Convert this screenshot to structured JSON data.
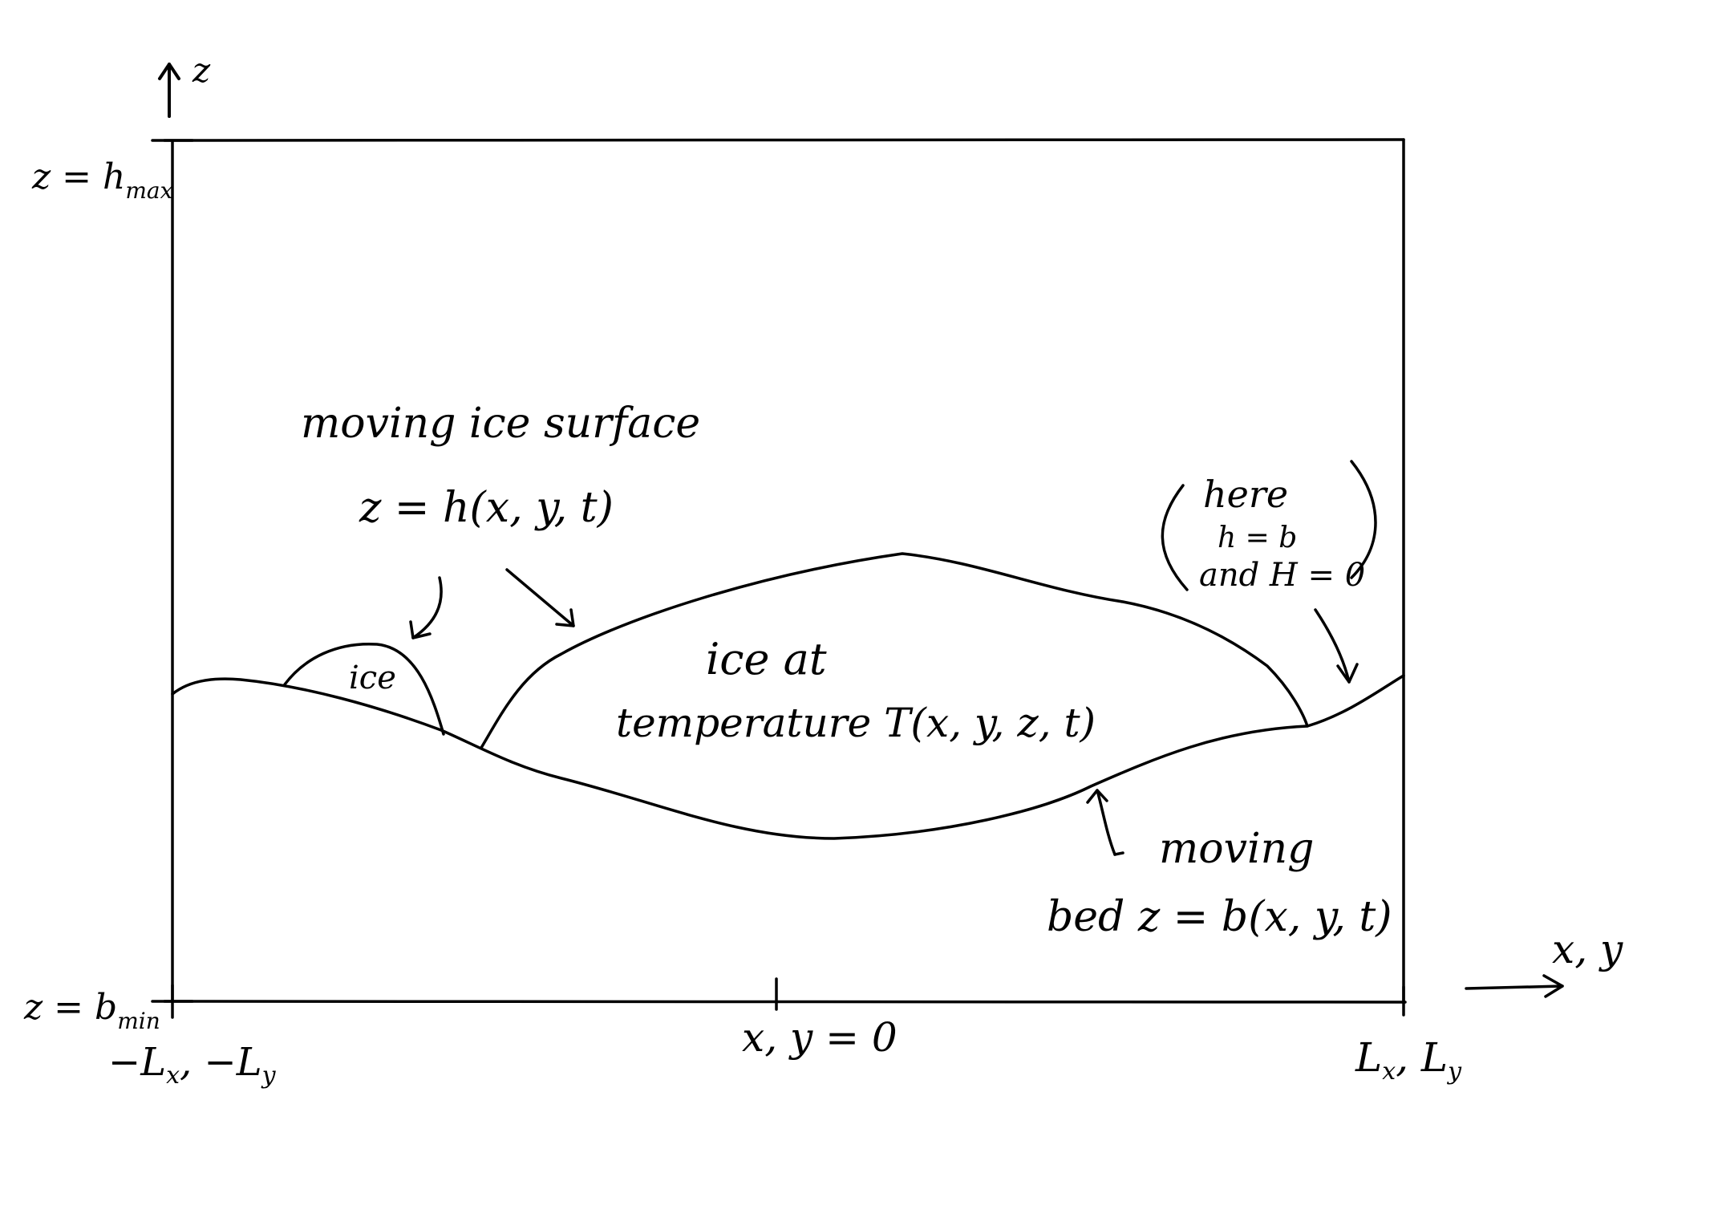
{
  "axes": {
    "z_label": "z",
    "horizontal_label": "x, y",
    "z_top_label": "z = h",
    "z_top_subscript": "max",
    "z_bottom_label": "z = b",
    "z_bottom_subscript": "min",
    "left_label": "−L",
    "left_label_sub1": "x",
    "left_label_mid": ", −L",
    "left_label_sub2": "y",
    "center_label": "x, y = 0",
    "right_label": "L",
    "right_label_sub1": "x",
    "right_label_mid": ", L",
    "right_label_sub2": "y"
  },
  "annotations": {
    "surface_title": "moving  ice  surface",
    "surface_eq": "z = h(x, y, t)",
    "small_ice": "ice",
    "ice_at": "ice   at",
    "temperature": "temperature  T(x, y, z, t)",
    "here_line1": "here",
    "here_line2": "h = b",
    "here_line3": "and  H = 0",
    "bed_line1": "moving",
    "bed_line2": "bed   z = b(x, y, t)"
  },
  "colors": {
    "ink": "#000000",
    "paper": "#ffffff"
  }
}
